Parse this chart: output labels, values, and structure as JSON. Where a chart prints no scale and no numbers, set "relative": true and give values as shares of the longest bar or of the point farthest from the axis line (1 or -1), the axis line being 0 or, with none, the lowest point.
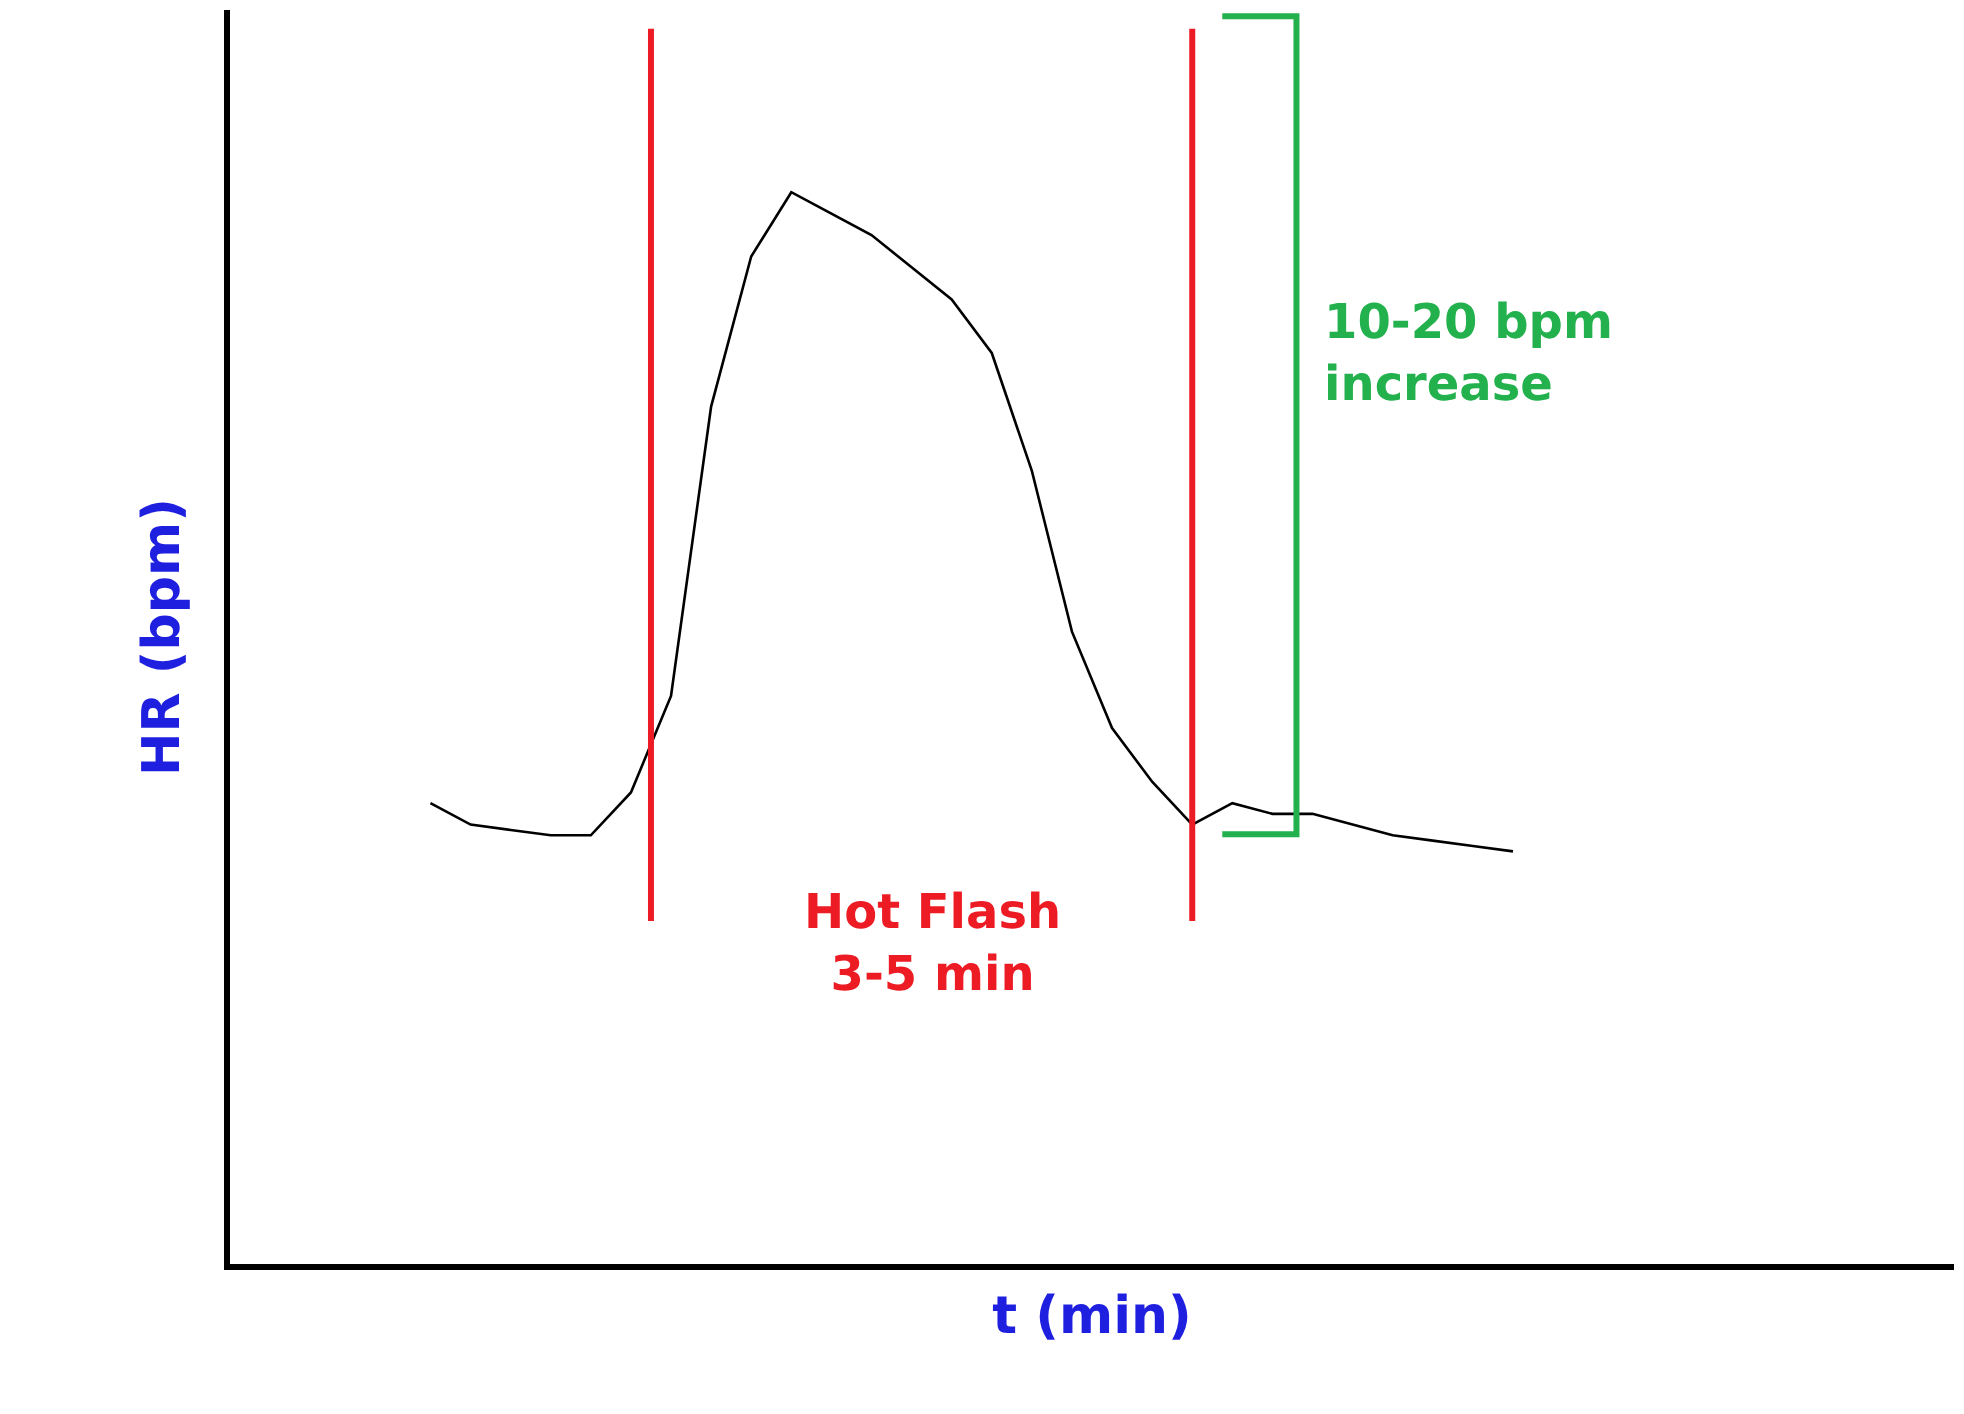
{
  "chart_data": {
    "type": "line",
    "relative": true,
    "xlabel": "t (min)",
    "ylabel": "HR (bpm)",
    "categories": [
      null,
      null,
      null,
      null,
      null,
      null,
      null,
      null,
      null,
      null,
      null,
      null,
      null,
      null,
      null,
      null,
      null,
      null,
      null,
      null,
      null,
      null,
      null,
      null,
      null,
      null,
      null,
      null,
      null,
      null,
      null,
      null,
      null,
      null,
      null,
      null,
      null,
      null,
      null,
      null,
      null,
      null,
      null,
      null
    ],
    "series": [
      {
        "color": "#000000",
        "values": [
          null,
          null,
          null,
          null,
          null,
          0.43,
          0.41,
          0.405,
          0.4,
          0.4,
          0.44,
          0.53,
          0.8,
          0.94,
          1.0,
          0.98,
          0.96,
          0.93,
          0.9,
          0.85,
          0.74,
          0.59,
          0.5,
          0.45,
          0.41,
          0.43,
          0.42,
          0.42,
          0.41,
          0.4,
          0.395,
          0.39,
          0.385,
          null,
          null,
          null,
          null,
          null,
          null,
          null,
          null,
          null,
          null,
          null
        ]
      }
    ],
    "annotations": [
      "Hot Flash\n3-5 min",
      "10-20 bpm\nincrease"
    ],
    "marker": "none",
    "line_style": "solid",
    "tick_labels": false
  }
}
